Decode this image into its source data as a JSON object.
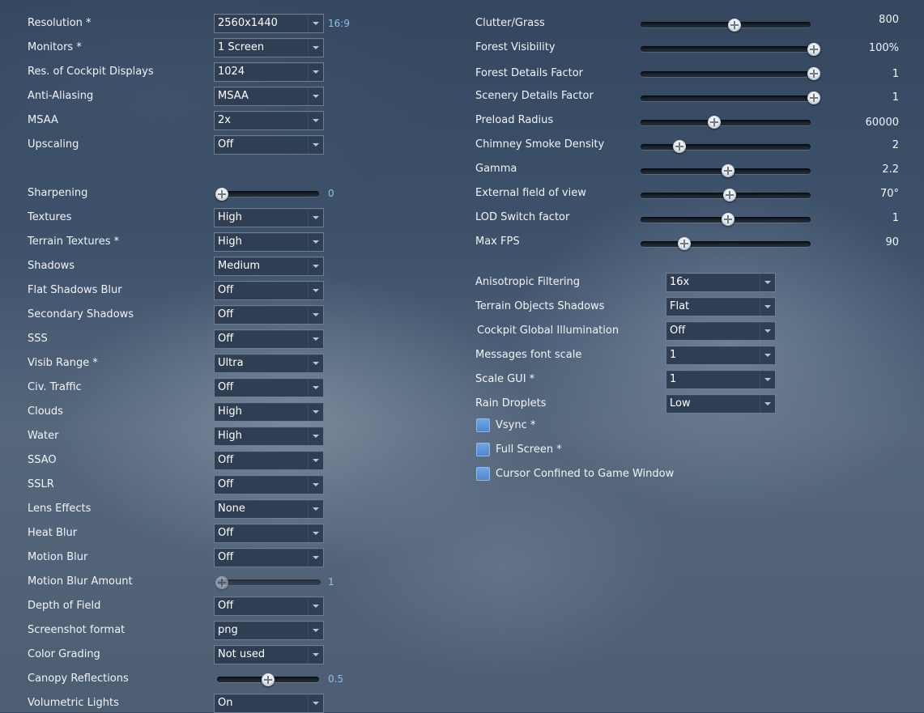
{
  "left": {
    "resolution": {
      "label": "Resolution *",
      "value": "2560x1440",
      "aspect": "16:9"
    },
    "monitors": {
      "label": "Monitors *",
      "value": "1 Screen"
    },
    "cockpit_displays": {
      "label": "Res. of Cockpit Displays",
      "value": "1024"
    },
    "anti_aliasing": {
      "label": "Anti-Aliasing",
      "value": "MSAA"
    },
    "msaa": {
      "label": "MSAA",
      "value": "2x"
    },
    "upscaling": {
      "label": "Upscaling",
      "value": "Off"
    },
    "sharpening": {
      "label": "Sharpening",
      "value": "0",
      "fraction": 0
    },
    "textures": {
      "label": "Textures",
      "value": "High"
    },
    "terrain_textures": {
      "label": "Terrain Textures *",
      "value": "High"
    },
    "shadows": {
      "label": "Shadows",
      "value": "Medium"
    },
    "flat_shadows_blur": {
      "label": "Flat Shadows Blur",
      "value": "Off"
    },
    "secondary_shadows": {
      "label": "Secondary Shadows",
      "value": "Off"
    },
    "sss": {
      "label": "SSS",
      "value": "Off"
    },
    "visib_range": {
      "label": "Visib Range *",
      "value": "Ultra"
    },
    "civ_traffic": {
      "label": "Civ. Traffic",
      "value": "Off"
    },
    "clouds": {
      "label": "Clouds",
      "value": "High"
    },
    "water": {
      "label": "Water",
      "value": "High"
    },
    "ssao": {
      "label": "SSAO",
      "value": "Off"
    },
    "sslr": {
      "label": "SSLR",
      "value": "Off"
    },
    "lens_effects": {
      "label": "Lens Effects",
      "value": "None"
    },
    "heat_blur": {
      "label": "Heat Blur",
      "value": "Off"
    },
    "motion_blur": {
      "label": "Motion Blur",
      "value": "Off"
    },
    "motion_blur_amount": {
      "label": "Motion Blur Amount",
      "value": "1",
      "fraction": 0
    },
    "depth_of_field": {
      "label": "Depth of Field",
      "value": "Off"
    },
    "screenshot_format": {
      "label": "Screenshot format",
      "value": "png"
    },
    "color_grading": {
      "label": "Color Grading",
      "value": "Not used"
    },
    "canopy_reflections": {
      "label": "Canopy Reflections",
      "value": "0.5",
      "fraction": 0.5
    },
    "volumetric_lights": {
      "label": "Volumetric Lights",
      "value": "On"
    }
  },
  "right": {
    "clutter_grass": {
      "label": "Clutter/Grass",
      "value": "800",
      "fraction": 0.53
    },
    "forest_visibility": {
      "label": "Forest Visibility",
      "value": "100%",
      "fraction": 1
    },
    "forest_details": {
      "label": "Forest Details Factor",
      "value": "1",
      "fraction": 1
    },
    "scenery_details": {
      "label": "Scenery Details Factor",
      "value": "1",
      "fraction": 1
    },
    "preload_radius": {
      "label": "Preload Radius",
      "value": "60000",
      "fraction": 0.41
    },
    "chimney_smoke": {
      "label": "Chimney Smoke Density",
      "value": "2",
      "fraction": 0.2
    },
    "gamma": {
      "label": "Gamma",
      "value": "2.2",
      "fraction": 0.49
    },
    "external_fov": {
      "label": "External field of view",
      "value": "70°",
      "fraction": 0.5
    },
    "lod_switch": {
      "label": "LOD Switch factor",
      "value": "1",
      "fraction": 0.49
    },
    "max_fps": {
      "label": "Max FPS",
      "value": "90",
      "fraction": 0.23
    },
    "anisotropic": {
      "label": "Anisotropic Filtering",
      "value": "16x"
    },
    "terrain_objects_shadows": {
      "label": "Terrain Objects Shadows",
      "value": "Flat"
    },
    "cockpit_gi": {
      "label": "Cockpit Global Illumination",
      "value": "Off"
    },
    "messages_font_scale": {
      "label": "Messages font scale",
      "value": "1"
    },
    "scale_gui": {
      "label": "Scale GUI *",
      "value": "1"
    },
    "rain_droplets": {
      "label": "Rain Droplets",
      "value": "Low"
    },
    "vsync": {
      "label": "Vsync *",
      "checked": true
    },
    "full_screen": {
      "label": "Full Screen *",
      "checked": true
    },
    "cursor_confined": {
      "label": "Cursor Confined to Game Window",
      "checked": true
    }
  }
}
